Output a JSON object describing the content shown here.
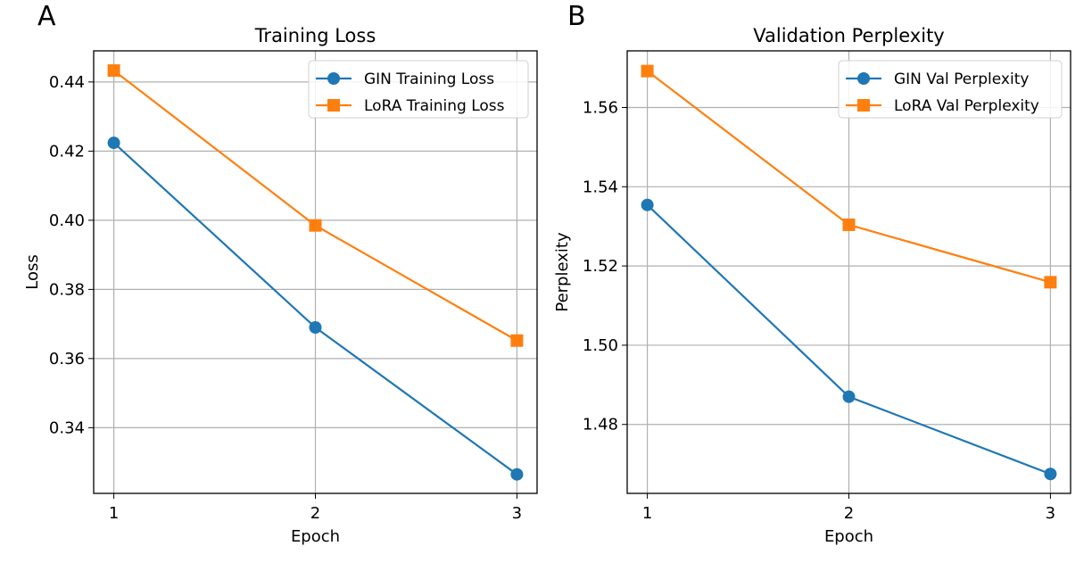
{
  "panel_labels": [
    "A",
    "B"
  ],
  "chart_data": [
    {
      "type": "line",
      "title": "Training Loss",
      "xlabel": "Epoch",
      "ylabel": "Loss",
      "x": [
        1,
        2,
        3
      ],
      "xticks": [
        "1",
        "2",
        "3"
      ],
      "xlim": [
        0.9,
        3.1
      ],
      "ylim": [
        0.321,
        0.449
      ],
      "yticks": [
        "0.34",
        "0.36",
        "0.38",
        "0.40",
        "0.42",
        "0.44"
      ],
      "grid": true,
      "legend_position": "top-right",
      "series": [
        {
          "name": "GIN Training Loss",
          "values": [
            0.4224,
            0.369,
            0.3265
          ],
          "color": "#1f77b4",
          "marker": "circle"
        },
        {
          "name": "LoRA Training Loss",
          "values": [
            0.4433,
            0.3985,
            0.3652
          ],
          "color": "#ff7f0e",
          "marker": "square"
        }
      ]
    },
    {
      "type": "line",
      "title": "Validation Perplexity",
      "xlabel": "Epoch",
      "ylabel": "Perplexity",
      "x": [
        1,
        2,
        3
      ],
      "xticks": [
        "1",
        "2",
        "3"
      ],
      "xlim": [
        0.9,
        3.1
      ],
      "ylim": [
        1.4626,
        1.5743
      ],
      "yticks": [
        "1.48",
        "1.50",
        "1.52",
        "1.54",
        "1.56"
      ],
      "grid": true,
      "legend_position": "top-right",
      "series": [
        {
          "name": "GIN Val Perplexity",
          "values": [
            1.5354,
            1.487,
            1.4675
          ],
          "color": "#1f77b4",
          "marker": "circle"
        },
        {
          "name": "LoRA Val Perplexity",
          "values": [
            1.5692,
            1.5304,
            1.5159
          ],
          "color": "#ff7f0e",
          "marker": "square"
        }
      ]
    }
  ]
}
